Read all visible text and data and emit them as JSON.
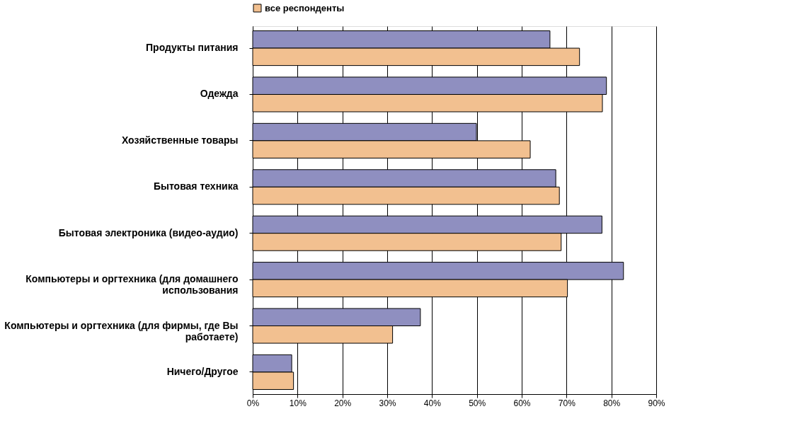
{
  "chart_data": {
    "type": "bar",
    "orientation": "horizontal",
    "categories": [
      "Продукты питания",
      "Одежда",
      "Хозяйственные товары",
      "Бытовая техника",
      "Бытовая электроника (видео-аудио)",
      "Компьютеры и оргтехника (для домашнего использования",
      "Компьютеры и оргтехника (для фирмы, где Вы работаете)",
      "Ничего/Другое"
    ],
    "series": [
      {
        "color": "#8f8fc0",
        "values": [
          66.3,
          78.9,
          49.9,
          67.6,
          77.9,
          82.7,
          37.4,
          8.7
        ]
      },
      {
        "name": "все респонденты",
        "color": "#f2c090",
        "values": [
          72.9,
          78.0,
          61.9,
          68.4,
          68.8,
          70.2,
          31.2,
          9.1
        ]
      }
    ],
    "xlim": [
      0,
      90
    ],
    "xticks": [
      {
        "value": 0,
        "label": "0%"
      },
      {
        "value": 10,
        "label": "10%"
      },
      {
        "value": 20,
        "label": "20%"
      },
      {
        "value": 30,
        "label": "30%"
      },
      {
        "value": 40,
        "label": "40%"
      },
      {
        "value": 50,
        "label": "50%"
      },
      {
        "value": 60,
        "label": "60%"
      },
      {
        "value": 70,
        "label": "70%"
      },
      {
        "value": 80,
        "label": "80%"
      },
      {
        "value": 90,
        "label": "90%"
      }
    ],
    "grid": "x",
    "legend": "top"
  }
}
